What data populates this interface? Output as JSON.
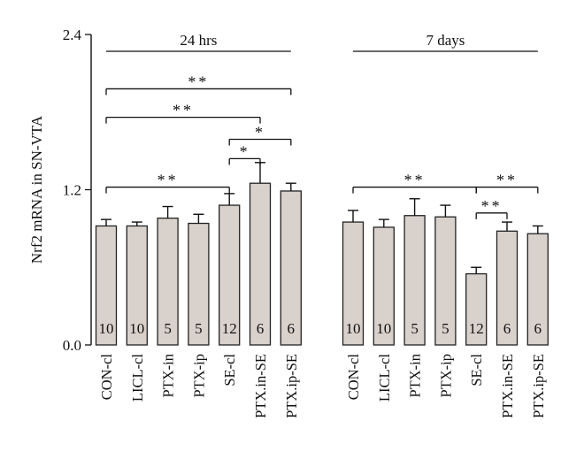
{
  "chart_data": {
    "type": "bar",
    "ylabel": "Nrf2 mRNA in SN-VTA",
    "ylim": [
      0,
      2.4
    ],
    "yticks": [
      "0.0",
      "1.2",
      "2.4"
    ],
    "grid": false,
    "bar_color": "#d9d1cc",
    "groups": [
      {
        "label": "24 hrs",
        "categories": [
          "CON-cl",
          "LICL-cl",
          "PTX-in",
          "PTX-ip",
          "SE-cl",
          "PTX.in-SE",
          "PTX.ip-SE"
        ],
        "values": [
          0.92,
          0.92,
          0.98,
          0.94,
          1.08,
          1.25,
          1.19
        ],
        "errors": [
          0.05,
          0.03,
          0.09,
          0.07,
          0.09,
          0.16,
          0.06
        ],
        "n": [
          "10",
          "10",
          "5",
          "5",
          "12",
          "6",
          "6"
        ]
      },
      {
        "label": "7 days",
        "categories": [
          "CON-cl",
          "LICL-cl",
          "PTX-in",
          "PTX-ip",
          "SE-cl",
          "PTX.in-SE",
          "PTX.ip-SE"
        ],
        "values": [
          0.95,
          0.91,
          1.0,
          0.99,
          0.55,
          0.88,
          0.86
        ],
        "errors": [
          0.09,
          0.06,
          0.13,
          0.09,
          0.05,
          0.07,
          0.06
        ],
        "n": [
          "10",
          "10",
          "5",
          "5",
          "12",
          "6",
          "6"
        ]
      }
    ],
    "annotations": [
      {
        "group": 0,
        "from": 0,
        "to": 6,
        "level": 1.98,
        "text": "**"
      },
      {
        "group": 0,
        "from": 0,
        "to": 5,
        "level": 1.76,
        "text": "**"
      },
      {
        "group": 0,
        "from": 4,
        "to": 6,
        "level": 1.59,
        "text": "*"
      },
      {
        "group": 0,
        "from": 4,
        "to": 5,
        "level": 1.44,
        "text": "*"
      },
      {
        "group": 0,
        "from": 0,
        "to": 4,
        "level": 1.22,
        "text": "**"
      },
      {
        "group": 1,
        "from": 0,
        "to": 4,
        "level": 1.22,
        "text": "**"
      },
      {
        "group": 1,
        "from": 4,
        "to": 6,
        "level": 1.22,
        "text": "**"
      },
      {
        "group": 1,
        "from": 4,
        "to": 5,
        "level": 1.02,
        "text": "**"
      }
    ]
  }
}
